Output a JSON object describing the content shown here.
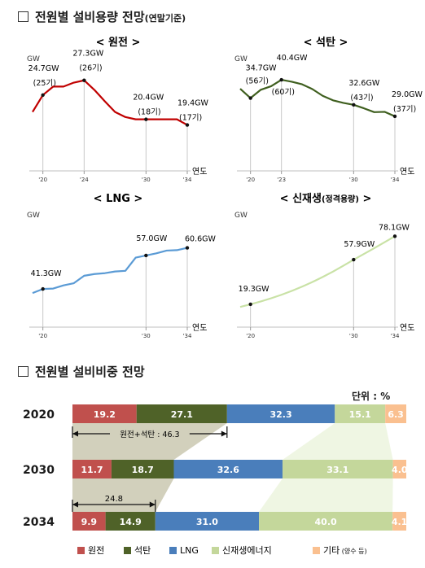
{
  "section1": {
    "title": "전원별 설비용량 전망",
    "subtitle": "(연말기준)"
  },
  "section2": {
    "title": "전원별 설비비중 전망"
  },
  "units_label": "단위 : %",
  "colors": {
    "nuclear": "#c0504d",
    "coal": "#4f6228",
    "lng": "#4a7ebb",
    "renewable": "#c4d79b",
    "other": "#fac090",
    "nuclear_line": "#c00000",
    "coal_line": "#3f5f1f",
    "lng_line": "#5b9bd5",
    "renewable_line": "#c9e2a6"
  },
  "chart_data": [
    {
      "type": "line",
      "title": "< 원전 >",
      "ylabel": "GW",
      "xlabel": "연도",
      "xlim": [
        2019,
        2034
      ],
      "x": [
        2019,
        2020,
        2021,
        2022,
        2023,
        2024,
        2025,
        2026,
        2027,
        2028,
        2029,
        2030,
        2031,
        2032,
        2033,
        2034
      ],
      "values": [
        21.7,
        24.7,
        26.2,
        26.2,
        26.9,
        27.3,
        25.6,
        23.6,
        21.7,
        20.8,
        20.4,
        20.4,
        20.4,
        20.4,
        20.4,
        19.4
      ],
      "ticks": [
        "'20",
        "'24",
        "'30",
        "'34"
      ],
      "tick_x": [
        2020,
        2024,
        2030,
        2034
      ],
      "annotations": [
        {
          "x": 2020,
          "value": "24.7GW",
          "sub": "(25기)"
        },
        {
          "x": 2024,
          "value": "27.3GW",
          "sub": "(26기)"
        },
        {
          "x": 2030,
          "value": "20.4GW",
          "sub": "(18기)"
        },
        {
          "x": 2034,
          "value": "19.4GW",
          "sub": "(17기)"
        }
      ]
    },
    {
      "type": "line",
      "title": "< 석탄 >",
      "ylabel": "GW",
      "xlabel": "연도",
      "xlim": [
        2019,
        2034
      ],
      "x": [
        2019,
        2020,
        2021,
        2022,
        2023,
        2024,
        2025,
        2026,
        2027,
        2028,
        2029,
        2030,
        2031,
        2032,
        2033,
        2034
      ],
      "values": [
        37.6,
        34.7,
        37.3,
        38.4,
        40.4,
        39.8,
        39.0,
        37.5,
        35.4,
        34.0,
        33.2,
        32.6,
        31.5,
        30.3,
        30.4,
        29.0
      ],
      "ticks": [
        "'20",
        "'23",
        "'30",
        "'34"
      ],
      "tick_x": [
        2020,
        2023,
        2030,
        2034
      ],
      "annotations": [
        {
          "x": 2020,
          "value": "34.7GW",
          "sub": "(56기)"
        },
        {
          "x": 2023,
          "value": "40.4GW",
          "sub": "(60기)"
        },
        {
          "x": 2030,
          "value": "32.6GW",
          "sub": "(43기)"
        },
        {
          "x": 2034,
          "value": "29.0GW",
          "sub": "(37기)"
        }
      ]
    },
    {
      "type": "line",
      "title": "< LNG >",
      "ylabel": "GW",
      "xlabel": "연도",
      "xlim": [
        2019,
        2034
      ],
      "x": [
        2019,
        2020,
        2021,
        2022,
        2023,
        2024,
        2025,
        2026,
        2027,
        2028,
        2029,
        2030,
        2031,
        2032,
        2033,
        2034
      ],
      "values": [
        39.4,
        41.3,
        41.5,
        43.0,
        44.0,
        47.5,
        48.3,
        48.7,
        49.5,
        49.8,
        56.0,
        57.0,
        58.0,
        59.3,
        59.5,
        60.6
      ],
      "ticks": [
        "'20",
        "'30",
        "'34"
      ],
      "tick_x": [
        2020,
        2030,
        2034
      ],
      "annotations": [
        {
          "x": 2020,
          "value": "41.3GW"
        },
        {
          "x": 2030,
          "value": "57.0GW"
        },
        {
          "x": 2034,
          "value": "60.6GW"
        }
      ]
    },
    {
      "type": "line",
      "title": "< 신재생",
      "title_sub": "(정격용량)",
      "title_end": " >",
      "ylabel": "GW",
      "xlabel": "연도",
      "xlim": [
        2019,
        2034
      ],
      "x": [
        2019,
        2020,
        2022,
        2024,
        2026,
        2028,
        2030,
        2032,
        2034
      ],
      "values": [
        17.0,
        19.3,
        24.3,
        30.7,
        38.4,
        47.4,
        57.9,
        67.7,
        78.1
      ],
      "ticks": [
        "'20",
        "'30",
        "'34"
      ],
      "tick_x": [
        2020,
        2030,
        2034
      ],
      "annotations": [
        {
          "x": 2020,
          "value": "19.3GW"
        },
        {
          "x": 2030,
          "value": "57.9GW"
        },
        {
          "x": 2034,
          "value": "78.1GW"
        }
      ]
    },
    {
      "type": "bar",
      "orientation": "horizontal",
      "stacked": true,
      "categories": [
        "2020",
        "2030",
        "2034"
      ],
      "series": [
        {
          "name": "원전",
          "values": [
            19.2,
            11.7,
            9.9
          ],
          "labels": [
            "19.2",
            "11.7",
            "9.9"
          ]
        },
        {
          "name": "석탄",
          "values": [
            27.1,
            18.7,
            14.9
          ],
          "labels": [
            "27.1",
            "18.7",
            "14.9"
          ]
        },
        {
          "name": "LNG",
          "values": [
            32.3,
            32.6,
            31.0
          ],
          "labels": [
            "32.3",
            "32.6",
            "31.0"
          ]
        },
        {
          "name": "신재생에너지",
          "values": [
            15.1,
            33.1,
            40.0
          ],
          "labels": [
            "15.1",
            "33.1",
            "40.0"
          ]
        },
        {
          "name": "기타",
          "name_sub": " (양수 등)",
          "values": [
            6.3,
            4.0,
            4.1
          ],
          "labels": [
            "6.3",
            "4.0",
            "4.1"
          ]
        }
      ],
      "annotations": [
        {
          "category": "2020",
          "text": "원전+석탄 : 46.3"
        },
        {
          "category": "2034",
          "text": "24.8"
        }
      ]
    }
  ]
}
